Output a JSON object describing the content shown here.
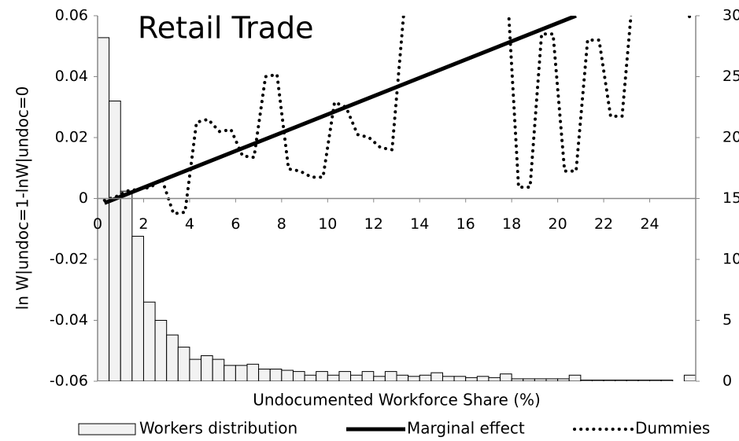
{
  "chart_data": {
    "type": "combo",
    "title": "Retail Trade",
    "x_label": "Undocumented Workforce Share (%)",
    "y_label": "ln W|undoc=1-lnW|undoc=0",
    "xlim": [
      0,
      26
    ],
    "xticks": [
      0,
      2,
      4,
      6,
      8,
      10,
      12,
      14,
      16,
      18,
      20,
      22,
      24
    ],
    "ylim": [
      -0.06,
      0.06
    ],
    "yticks": [
      -0.06,
      -0.04,
      -0.02,
      0,
      0.02,
      0.04,
      0.06
    ],
    "y2lim": [
      0,
      30
    ],
    "y2ticks": [
      0,
      5,
      10,
      15,
      20,
      25,
      30
    ],
    "legend": "bottom",
    "series": [
      {
        "name": "Workers distribution",
        "type": "histogram",
        "axis": "y2",
        "color": "#f2f2f2",
        "bins": [
          0,
          0.5,
          1,
          1.5,
          2,
          2.5,
          3,
          3.5,
          4,
          4.5,
          5,
          5.5,
          6,
          6.5,
          7,
          7.5,
          8,
          8.5,
          9,
          9.5,
          10,
          10.5,
          11,
          11.5,
          12,
          12.5,
          13,
          13.5,
          14,
          14.5,
          15,
          15.5,
          16,
          16.5,
          17,
          17.5,
          18,
          18.5,
          19,
          19.5,
          20,
          20.5,
          21,
          21.5,
          22,
          22.5,
          23,
          23.5,
          24,
          24.5,
          25,
          25.5,
          26
        ],
        "values": [
          28.2,
          23.0,
          15.6,
          11.9,
          6.5,
          5.0,
          3.8,
          2.8,
          1.8,
          2.1,
          1.8,
          1.3,
          1.3,
          1.4,
          1.0,
          1.0,
          0.9,
          0.8,
          0.5,
          0.8,
          0.5,
          0.8,
          0.5,
          0.8,
          0.4,
          0.8,
          0.5,
          0.4,
          0.5,
          0.7,
          0.4,
          0.4,
          0.3,
          0.4,
          0.3,
          0.6,
          0.2,
          0.2,
          0.2,
          0.2,
          0.2,
          0.5,
          0.1,
          0.1,
          0.1,
          0.1,
          0.1,
          0.1,
          0.1,
          0.1,
          0,
          0.5
        ]
      },
      {
        "name": "Marginal effect",
        "type": "line",
        "line_style": "solid",
        "color": "#000000",
        "x": [
          0.3,
          20.8
        ],
        "values": [
          -0.0015,
          0.06
        ]
      },
      {
        "name": "Dummies",
        "type": "line",
        "line_style": "dotted",
        "color": "#000000",
        "x": [
          0.3,
          0.8,
          1.3,
          1.8,
          2.3,
          2.8,
          3.3,
          3.8,
          4.3,
          4.8,
          5.3,
          5.8,
          6.3,
          6.8,
          7.3,
          7.8,
          8.3,
          8.8,
          9.3,
          9.8,
          10.3,
          10.8,
          11.3,
          11.8,
          12.3,
          12.8,
          13.3,
          13.8,
          14.3,
          14.8,
          15.3,
          15.8,
          16.3,
          16.8,
          17.3,
          17.8,
          18.3,
          18.8,
          19.3,
          19.8,
          20.3,
          20.8,
          21.3,
          21.8,
          22.3,
          22.8,
          23.3,
          23.8,
          24.3,
          24.8,
          25.3,
          25.8
        ],
        "values": [
          -0.0006,
          0.0006,
          0.0025,
          0.003,
          0.0037,
          0.0063,
          -0.005,
          -0.0045,
          0.025,
          0.026,
          0.022,
          0.0226,
          0.014,
          0.0135,
          0.04,
          0.0407,
          0.0097,
          0.009,
          0.007,
          0.007,
          0.0316,
          0.03,
          0.021,
          0.02,
          0.0167,
          0.016,
          0.06,
          0.07,
          0.07,
          0.07,
          0.07,
          0.07,
          0.07,
          0.07,
          0.07,
          0.07,
          0.0037,
          0.0037,
          0.054,
          0.054,
          0.009,
          0.009,
          0.052,
          0.052,
          0.027,
          0.027,
          0.07,
          0.07,
          0.07,
          0.07,
          0.07,
          0.058
        ]
      }
    ]
  }
}
